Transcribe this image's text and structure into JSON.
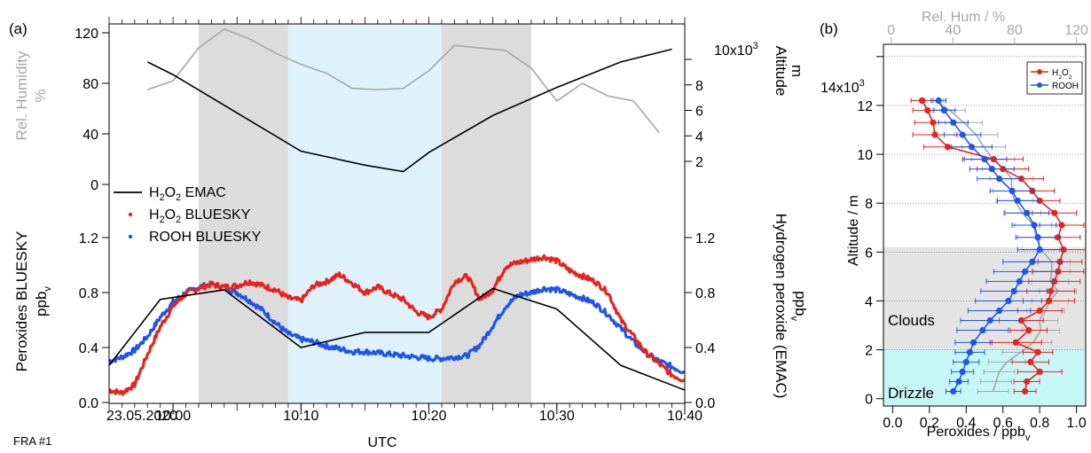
{
  "labels": {
    "panel_a": "(a)",
    "panel_b": "(b)",
    "date": "23.05.2020",
    "xlabel": "UTC",
    "flight": "FRA #1",
    "relhum_label": "Rel. Humidity",
    "relhum_unit": "%",
    "altitude_label": "Altitude",
    "altitude_unit": "m",
    "alt_exp": "10x10",
    "alt_exp_sup": "3",
    "peroxides_label": "Peroxides BLUESKY",
    "peroxides_unit": "ppb",
    "peroxides_unit_sub": "v",
    "h2o2_emac_label": "Hydrogen peroxide (EMAC)",
    "h2o2_emac_unit": "ppb",
    "h2o2_emac_unit_sub": "v",
    "b_top_label": "Rel. Hum / %",
    "b_ylabel": "Altitude / m",
    "b_xlabel": "Peroxides / ppb",
    "b_xlabel_sub": "v",
    "b_ytop": "14x10",
    "b_ytop_sup": "3",
    "clouds": "Clouds",
    "drizzle": "Drizzle"
  },
  "legend_a": [
    {
      "pre": "H",
      "s1": "2",
      "mid": "O",
      "s2": "2",
      "post": " EMAC",
      "color": "#000000",
      "kind": "line"
    },
    {
      "pre": "H",
      "s1": "2",
      "mid": "O",
      "s2": "2",
      "post": " BLUESKY",
      "color": "#e8221c",
      "kind": "dot"
    },
    {
      "pre": "ROOH BLUESKY",
      "s1": "",
      "mid": "",
      "s2": "",
      "post": "",
      "color": "#1f56e8",
      "kind": "dot"
    }
  ],
  "legend_b": [
    {
      "pre": "H",
      "s1": "2",
      "mid": "O",
      "s2": "2",
      "post": "",
      "color": "#e8221c"
    },
    {
      "pre": "ROOH",
      "s1": "",
      "mid": "",
      "s2": "",
      "post": "",
      "color": "#1f56e8"
    }
  ],
  "colors": {
    "h2o2": "#e8221c",
    "rooh": "#1f56e8",
    "emac": "#000000",
    "relhum": "#a6a6a6",
    "cloud_shade": "#dcdcdc",
    "clear_shade": "#dff2fb",
    "drizzle_shade": "#c7f6f6",
    "cloud_b_shade": "#e4e4e4"
  },
  "chart_data": [
    {
      "type": "line",
      "panel": "a-top",
      "x_unit": "minutes after 09:55 UTC",
      "xlim": [
        "09:55",
        "10:40"
      ],
      "x_ticks": [
        "10:00",
        "10:10",
        "10:20",
        "10:30",
        "10:40"
      ],
      "ylabel_left": "Rel. Humidity %",
      "ylim_left": [
        0,
        125
      ],
      "yticks_left": [
        0,
        40,
        80,
        120
      ],
      "ylabel_right": "Altitude m",
      "ylim_right": [
        1000,
        11000
      ],
      "yticks_right": [
        2000,
        4000,
        6000,
        8000,
        10000
      ],
      "shaded_intervals": [
        {
          "start": "10:02",
          "end": "10:09",
          "kind": "cloud"
        },
        {
          "start": "10:09",
          "end": "10:21",
          "kind": "clear"
        },
        {
          "start": "10:21",
          "end": "10:28",
          "kind": "cloud"
        }
      ],
      "series": [
        {
          "axis": "left",
          "x": [
            "09:58",
            "10:00",
            "10:02",
            "10:04",
            "10:06",
            "10:08",
            "10:10",
            "10:12",
            "10:14",
            "10:16",
            "10:18",
            "10:20",
            "10:22",
            "10:24",
            "10:26",
            "10:28",
            "10:30",
            "10:32",
            "10:34",
            "10:36",
            "10:38"
          ],
          "y": [
            75,
            82,
            108,
            123,
            115,
            104,
            95,
            88,
            76,
            75,
            76,
            90,
            110,
            108,
            106,
            92,
            66,
            80,
            70,
            66,
            41
          ]
        },
        {
          "axis": "right",
          "x": [
            "09:58",
            "10:00",
            "10:10",
            "10:15",
            "10:18",
            "10:20",
            "10:25",
            "10:30",
            "10:35",
            "10:39"
          ],
          "y": [
            9800,
            8800,
            2800,
            1700,
            1200,
            2700,
            5600,
            7800,
            9800,
            10800
          ]
        }
      ]
    },
    {
      "type": "line",
      "panel": "a-bottom",
      "xlim": [
        "09:55",
        "10:40"
      ],
      "x_ticks": [
        "10:00",
        "10:10",
        "10:20",
        "10:30",
        "10:40"
      ],
      "ylim": [
        0,
        1.5
      ],
      "yticks": [
        0.0,
        0.4,
        0.8,
        1.2
      ],
      "series": [
        {
          "name": "H2O2 EMAC",
          "x": [
            "09:55",
            "09:59",
            "10:04",
            "10:10",
            "10:15",
            "10:20",
            "10:25",
            "10:30",
            "10:35",
            "10:40"
          ],
          "y": [
            0.27,
            0.75,
            0.82,
            0.4,
            0.51,
            0.51,
            0.83,
            0.68,
            0.27,
            0.09
          ]
        },
        {
          "name": "H2O2 BLUESKY",
          "x": [
            "09:55",
            "09:56",
            "09:57",
            "09:58",
            "09:59",
            "10:00",
            "10:01",
            "10:02",
            "10:03",
            "10:04",
            "10:05",
            "10:06",
            "10:07",
            "10:08",
            "10:09",
            "10:10",
            "10:11",
            "10:12",
            "10:13",
            "10:14",
            "10:15",
            "10:16",
            "10:17",
            "10:18",
            "10:19",
            "10:20",
            "10:21",
            "10:22",
            "10:23",
            "10:24",
            "10:25",
            "10:26",
            "10:27",
            "10:28",
            "10:29",
            "10:30",
            "10:31",
            "10:32",
            "10:33",
            "10:34",
            "10:35",
            "10:36",
            "10:37",
            "10:38",
            "10:39",
            "10:40"
          ],
          "y": [
            0.09,
            0.07,
            0.13,
            0.35,
            0.55,
            0.7,
            0.79,
            0.83,
            0.86,
            0.84,
            0.85,
            0.88,
            0.85,
            0.82,
            0.76,
            0.74,
            0.85,
            0.88,
            0.93,
            0.87,
            0.8,
            0.84,
            0.79,
            0.75,
            0.66,
            0.62,
            0.68,
            0.88,
            0.92,
            0.75,
            0.82,
            0.99,
            1.02,
            1.04,
            1.06,
            1.03,
            0.96,
            0.92,
            0.88,
            0.8,
            0.6,
            0.48,
            0.36,
            0.28,
            0.2,
            0.16
          ]
        },
        {
          "name": "ROOH BLUESKY",
          "x": [
            "09:55",
            "09:56",
            "09:57",
            "09:58",
            "09:59",
            "10:00",
            "10:01",
            "10:02",
            "10:03",
            "10:04",
            "10:05",
            "10:06",
            "10:07",
            "10:08",
            "10:09",
            "10:10",
            "10:11",
            "10:12",
            "10:13",
            "10:14",
            "10:15",
            "10:16",
            "10:17",
            "10:18",
            "10:19",
            "10:20",
            "10:21",
            "10:22",
            "10:23",
            "10:24",
            "10:25",
            "10:26",
            "10:27",
            "10:28",
            "10:29",
            "10:30",
            "10:31",
            "10:32",
            "10:33",
            "10:34",
            "10:35",
            "10:36",
            "10:37",
            "10:38",
            "10:39",
            "10:40"
          ],
          "y": [
            0.3,
            0.33,
            0.38,
            0.48,
            0.62,
            0.73,
            0.8,
            0.84,
            0.86,
            0.84,
            0.8,
            0.74,
            0.67,
            0.58,
            0.5,
            0.46,
            0.44,
            0.41,
            0.39,
            0.37,
            0.37,
            0.36,
            0.35,
            0.34,
            0.33,
            0.32,
            0.32,
            0.33,
            0.34,
            0.42,
            0.56,
            0.7,
            0.78,
            0.8,
            0.83,
            0.82,
            0.79,
            0.76,
            0.72,
            0.64,
            0.54,
            0.44,
            0.36,
            0.3,
            0.26,
            0.22
          ]
        }
      ]
    },
    {
      "type": "line",
      "panel": "b",
      "xlabel": "Peroxides / ppbv",
      "xlim": [
        -0.05,
        1.05
      ],
      "xticks": [
        0.0,
        0.2,
        0.4,
        0.6,
        0.8,
        1.0
      ],
      "ylabel": "Altitude / m",
      "ylim": [
        -300,
        14500
      ],
      "yticks": [
        0,
        2000,
        4000,
        6000,
        8000,
        10000,
        12000,
        14000
      ],
      "top_axis": {
        "label": "Rel. Hum / %",
        "lim": [
          -5,
          126
        ],
        "ticks": [
          0,
          40,
          80,
          120
        ]
      },
      "regions": [
        {
          "name": "Clouds",
          "ymin": 2000,
          "ymax": 6200
        },
        {
          "name": "Drizzle",
          "ymin": -300,
          "ymax": 2000
        }
      ],
      "series": [
        {
          "name": "H2O2",
          "y": [
            300,
            700,
            1100,
            1500,
            1900,
            2300,
            2800,
            3200,
            3600,
            4000,
            4400,
            4800,
            5200,
            5600,
            6100,
            6600,
            7100,
            7600,
            8100,
            8500,
            9000,
            9400,
            9800,
            10300,
            10800,
            11300,
            11800,
            12200
          ],
          "x": [
            0.72,
            0.73,
            0.8,
            0.75,
            0.79,
            0.67,
            0.74,
            0.7,
            0.8,
            0.85,
            0.86,
            0.88,
            0.9,
            0.91,
            0.93,
            0.9,
            0.92,
            0.88,
            0.8,
            0.76,
            0.7,
            0.6,
            0.55,
            0.3,
            0.23,
            0.22,
            0.19,
            0.16
          ],
          "xerr": [
            0.06,
            0.07,
            0.12,
            0.1,
            0.08,
            0.14,
            0.1,
            0.12,
            0.12,
            0.14,
            0.13,
            0.14,
            0.14,
            0.12,
            0.12,
            0.12,
            0.12,
            0.12,
            0.11,
            0.12,
            0.12,
            0.14,
            0.16,
            0.13,
            0.12,
            0.1,
            0.08,
            0.06
          ]
        },
        {
          "name": "ROOH",
          "y": [
            300,
            700,
            1100,
            1500,
            1900,
            2300,
            2800,
            3200,
            3600,
            4000,
            4400,
            4800,
            5200,
            5600,
            6100,
            6600,
            7100,
            7600,
            8100,
            8500,
            9000,
            9400,
            9800,
            10300,
            10800,
            11300,
            11800,
            12200
          ],
          "x": [
            0.33,
            0.36,
            0.38,
            0.4,
            0.42,
            0.44,
            0.49,
            0.53,
            0.58,
            0.63,
            0.66,
            0.69,
            0.72,
            0.76,
            0.8,
            0.79,
            0.77,
            0.73,
            0.68,
            0.65,
            0.58,
            0.54,
            0.5,
            0.43,
            0.38,
            0.33,
            0.28,
            0.25
          ],
          "xerr": [
            0.04,
            0.05,
            0.06,
            0.07,
            0.08,
            0.1,
            0.14,
            0.16,
            0.17,
            0.18,
            0.18,
            0.18,
            0.17,
            0.16,
            0.12,
            0.12,
            0.12,
            0.12,
            0.11,
            0.12,
            0.12,
            0.12,
            0.12,
            0.11,
            0.1,
            0.08,
            0.06,
            0.04
          ]
        },
        {
          "name": "Rel. Hum",
          "axis": "top",
          "y": [
            300,
            700,
            1100,
            1500,
            1900,
            2300,
            2800,
            3200,
            3600,
            4000,
            4400,
            4800,
            5200,
            5600,
            6100,
            6600,
            7100,
            7600,
            8100,
            8500,
            9000,
            9400,
            9800,
            10300,
            10800,
            11300,
            11800,
            12200
          ],
          "x": [
            66,
            68,
            70,
            75,
            84,
            92,
            97,
            96,
            100,
            103,
            108,
            103,
            104,
            104,
            97,
            94,
            92,
            85,
            80,
            78,
            78,
            73,
            66,
            60,
            55,
            47,
            38,
            28
          ],
          "xerr": [
            10,
            10,
            10,
            12,
            12,
            12,
            12,
            12,
            12,
            12,
            12,
            12,
            12,
            12,
            12,
            12,
            12,
            12,
            12,
            12,
            14,
            14,
            14,
            14,
            14,
            12,
            10,
            6
          ]
        }
      ]
    }
  ]
}
